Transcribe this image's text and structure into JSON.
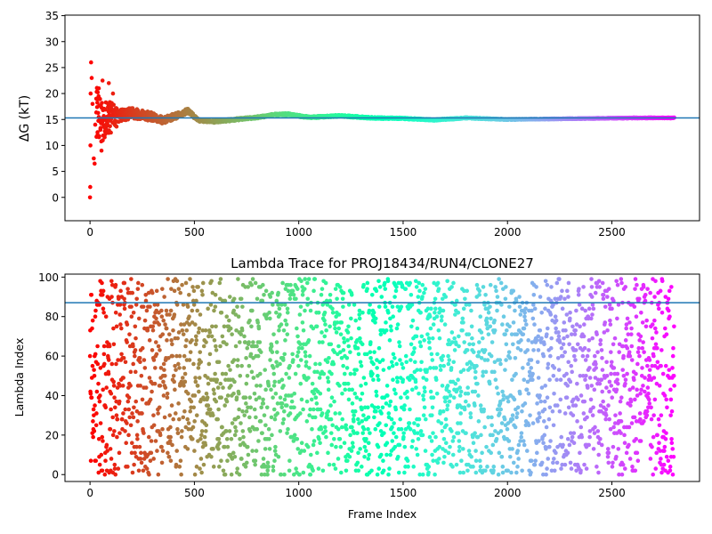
{
  "chart_data": [
    {
      "type": "scatter",
      "title": "",
      "xlabel": "",
      "ylabel": "ΔG (kT)",
      "xlim": [
        -120,
        2920
      ],
      "ylim": [
        -4.5,
        35.1
      ],
      "xticks": [
        0,
        500,
        1000,
        1500,
        2000,
        2500
      ],
      "yticks": [
        0,
        5,
        10,
        15,
        20,
        25,
        30,
        35
      ],
      "grid": false,
      "reference_line_y": 15.3,
      "reference_line_color": "#1f77b4",
      "colormap": "rainbow",
      "color_by": "frame index (red at start, violet at end)",
      "frames": 2800,
      "early_points": [
        {
          "x": 0,
          "y": 0.0
        },
        {
          "x": 1,
          "y": 2.0
        },
        {
          "x": 2,
          "y": 10.0
        },
        {
          "x": 3,
          "y": 20.0
        },
        {
          "x": 5,
          "y": 26.0
        },
        {
          "x": 8,
          "y": 23.0
        },
        {
          "x": 12,
          "y": 18.0
        },
        {
          "x": 18,
          "y": 7.5
        },
        {
          "x": 22,
          "y": 6.5
        },
        {
          "x": 25,
          "y": 14.0
        },
        {
          "x": 30,
          "y": 19.0
        },
        {
          "x": 36,
          "y": 12.0
        },
        {
          "x": 42,
          "y": 21.0
        },
        {
          "x": 50,
          "y": 13.0
        },
        {
          "x": 55,
          "y": 9.0
        },
        {
          "x": 60,
          "y": 22.5
        },
        {
          "x": 70,
          "y": 17.0
        },
        {
          "x": 80,
          "y": 12.5
        },
        {
          "x": 90,
          "y": 22.0
        },
        {
          "x": 100,
          "y": 15.0
        },
        {
          "x": 110,
          "y": 20.0
        },
        {
          "x": 120,
          "y": 14.5
        }
      ],
      "trend": [
        {
          "x": 120,
          "y": 15.5
        },
        {
          "x": 200,
          "y": 16.2
        },
        {
          "x": 300,
          "y": 15.5
        },
        {
          "x": 350,
          "y": 14.8
        },
        {
          "x": 420,
          "y": 15.8
        },
        {
          "x": 470,
          "y": 16.7
        },
        {
          "x": 520,
          "y": 14.8
        },
        {
          "x": 600,
          "y": 14.6
        },
        {
          "x": 700,
          "y": 15.0
        },
        {
          "x": 800,
          "y": 15.4
        },
        {
          "x": 880,
          "y": 15.9
        },
        {
          "x": 950,
          "y": 16.0
        },
        {
          "x": 1050,
          "y": 15.4
        },
        {
          "x": 1200,
          "y": 15.7
        },
        {
          "x": 1350,
          "y": 15.3
        },
        {
          "x": 1500,
          "y": 15.2
        },
        {
          "x": 1650,
          "y": 14.9
        },
        {
          "x": 1800,
          "y": 15.3
        },
        {
          "x": 2000,
          "y": 15.0
        },
        {
          "x": 2200,
          "y": 15.1
        },
        {
          "x": 2400,
          "y": 15.2
        },
        {
          "x": 2600,
          "y": 15.3
        },
        {
          "x": 2790,
          "y": 15.3
        }
      ]
    },
    {
      "type": "scatter",
      "title": "Lambda Trace for PROJ18434/RUN4/CLONE27",
      "xlabel": "Frame Index",
      "ylabel": "Lambda Index",
      "xlim": [
        -120,
        2920
      ],
      "ylim": [
        -3.5,
        101.5
      ],
      "xticks": [
        0,
        500,
        1000,
        1500,
        2000,
        2500
      ],
      "yticks": [
        0,
        20,
        40,
        60,
        80,
        100
      ],
      "grid": false,
      "reference_line_y": 87,
      "reference_line_color": "#1f77b4",
      "colormap": "rainbow",
      "color_by": "frame index (red at start, violet at end)",
      "frames": 2800,
      "lambda_range": [
        0,
        99
      ],
      "distribution": "uniform random lambda index per frame"
    }
  ]
}
